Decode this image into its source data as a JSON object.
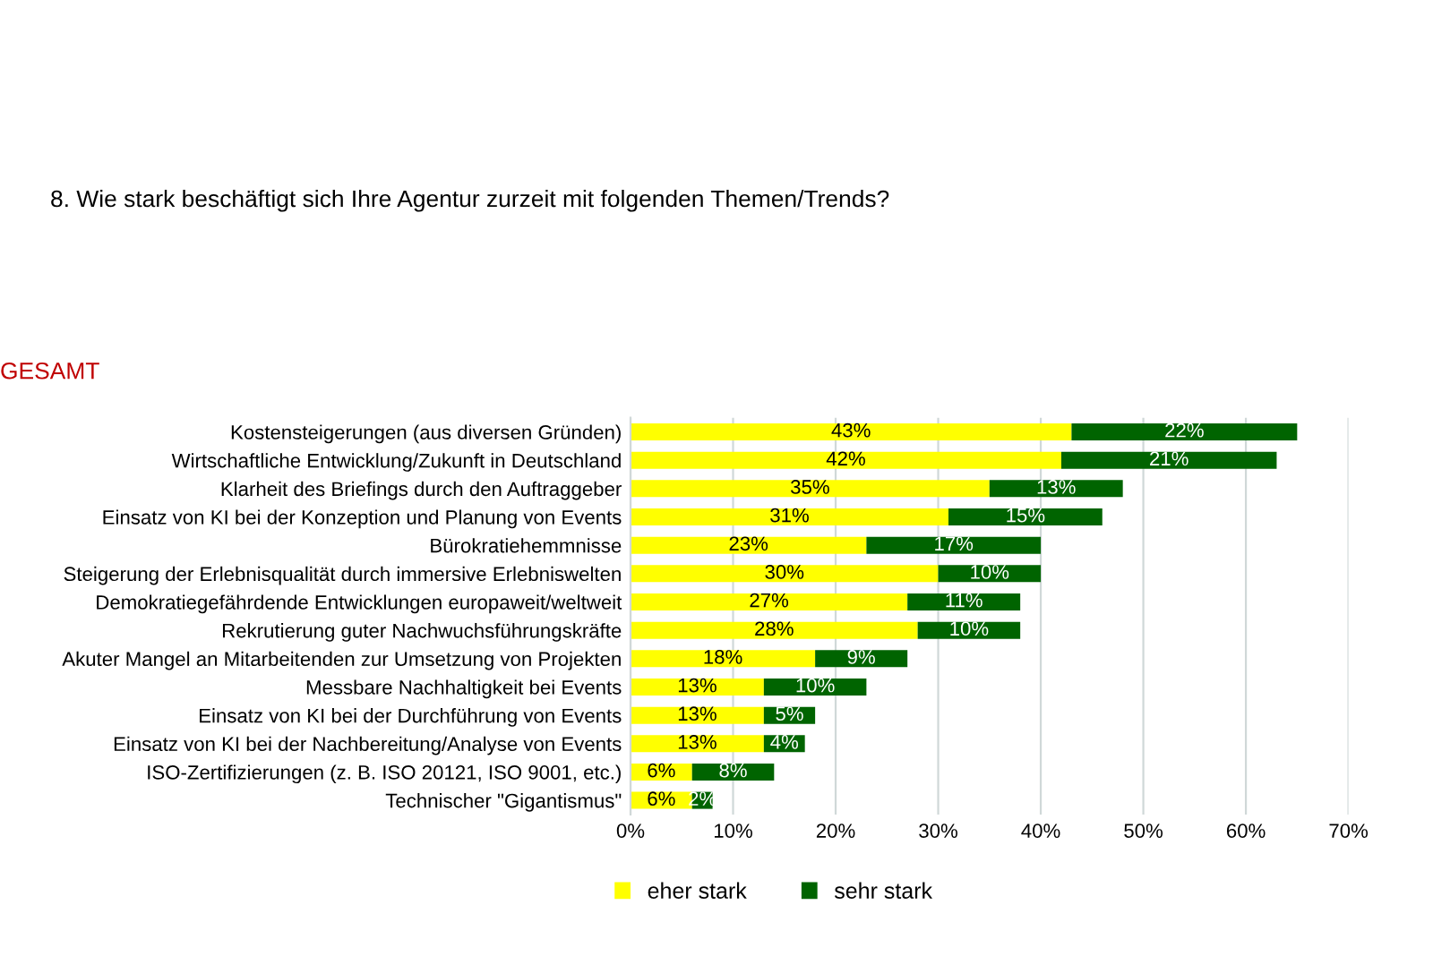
{
  "chart_data": {
    "type": "bar",
    "orientation": "horizontal",
    "stacked": true,
    "title": "8. Wie stark beschäftigt sich Ihre Agentur zurzeit mit folgenden Themen/Trends?",
    "subtitle": "GESAMT",
    "categories": [
      "Kostensteigerungen (aus diversen Gründen)",
      "Wirtschaftliche Entwicklung/Zukunft in Deutschland",
      "Klarheit des Briefings durch den Auftraggeber",
      "Einsatz von KI bei der Konzeption und Planung von Events",
      "Bürokratiehemmnisse",
      "Steigerung der Erlebnisqualität durch immersive Erlebniswelten",
      "Demokratiegefährdende Entwicklungen europaweit/weltweit",
      "Rekrutierung guter Nachwuchsführungskräfte",
      "Akuter Mangel an Mitarbeitenden zur Umsetzung von Projekten",
      "Messbare Nachhaltigkeit bei Events",
      "Einsatz von KI bei der Durchführung von Events",
      "Einsatz von KI bei der Nachbereitung/Analyse von Events",
      "ISO-Zertifizierungen (z. B. ISO 20121, ISO 9001, etc.)",
      "Technischer \"Gigantismus\""
    ],
    "series": [
      {
        "name": "eher stark",
        "color": "#ffff00",
        "values": [
          43,
          42,
          35,
          31,
          23,
          30,
          27,
          28,
          18,
          13,
          13,
          13,
          6,
          6
        ],
        "value_labels": [
          "43%",
          "42%",
          "35%",
          "31%",
          "23%",
          "30%",
          "27%",
          "28%",
          "18%",
          "13%",
          "13%",
          "13%",
          "6%",
          "6%"
        ]
      },
      {
        "name": "sehr stark",
        "color": "#006400",
        "values": [
          22,
          21,
          13,
          15,
          17,
          10,
          11,
          10,
          9,
          10,
          5,
          4,
          8,
          2
        ],
        "value_labels": [
          "22%",
          "21%",
          "13%",
          "15%",
          "17%",
          "10%",
          "11%",
          "10%",
          "9%",
          "10%",
          "5%",
          "4%",
          "8%",
          "2%"
        ]
      }
    ],
    "xlim": [
      0,
      70
    ],
    "xticks": [
      {
        "value": 0,
        "label": "0%"
      },
      {
        "value": 10,
        "label": "10%"
      },
      {
        "value": 20,
        "label": "20%"
      },
      {
        "value": 30,
        "label": "30%"
      },
      {
        "value": 40,
        "label": "40%"
      },
      {
        "value": 50,
        "label": "50%"
      },
      {
        "value": 60,
        "label": "60%"
      },
      {
        "value": 70,
        "label": "70%"
      }
    ],
    "grid": "x",
    "legend": "bottom"
  }
}
